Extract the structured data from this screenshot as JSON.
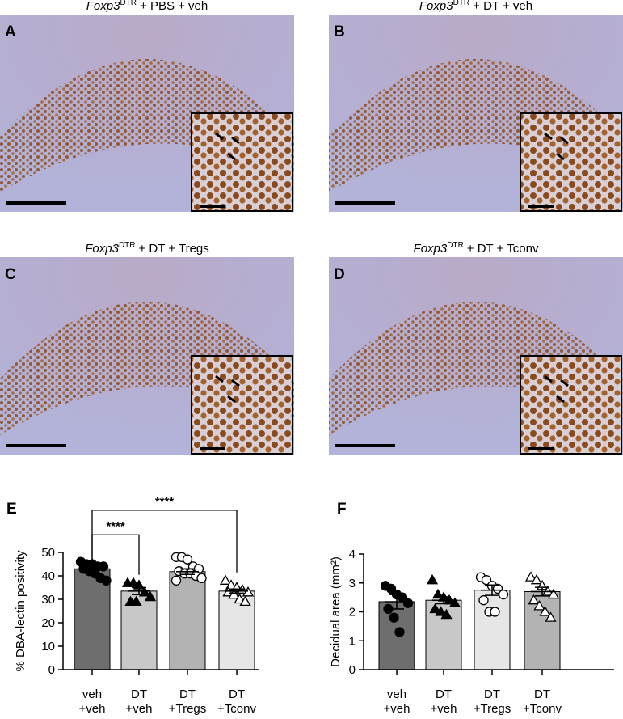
{
  "micrographs": [
    {
      "panel": "A",
      "gene": "Foxp3",
      "superscript": "DTR",
      "condition": "+ PBS + veh"
    },
    {
      "panel": "B",
      "gene": "Foxp3",
      "superscript": "DTR",
      "condition": "+ DT + veh"
    },
    {
      "panel": "C",
      "gene": "Foxp3",
      "superscript": "DTR",
      "condition": "+ DT + Tregs"
    },
    {
      "panel": "D",
      "gene": "Foxp3",
      "superscript": "DTR",
      "condition": "+ DT + Tconv"
    }
  ],
  "chart_data": [
    {
      "panel": "E",
      "type": "bar",
      "ylabel": "% DBA-lectin positivity",
      "categories": [
        [
          "veh",
          "+veh"
        ],
        [
          "DT",
          "+veh"
        ],
        [
          "DT",
          "+Tregs"
        ],
        [
          "DT",
          "+Tconv"
        ]
      ],
      "values": [
        43,
        33.5,
        41.8,
        33.5
      ],
      "errors": [
        1.2,
        1.5,
        1.2,
        0.9
      ],
      "colors": [
        "#6e6e6e",
        "#c8c8c8",
        "#b3b3b3",
        "#e6e6e6"
      ],
      "markers": [
        "circle",
        "triangle",
        "circle",
        "triangle"
      ],
      "marker_fill": [
        "#000000",
        "#000000",
        "#ffffff",
        "#ffffff"
      ],
      "points": [
        [
          46,
          45,
          45,
          44,
          44,
          43,
          42,
          41,
          39,
          38
        ],
        [
          37,
          37,
          36,
          33,
          31,
          29,
          29
        ],
        [
          48,
          48,
          47,
          44,
          43,
          42,
          41,
          41,
          40,
          39,
          38
        ],
        [
          38,
          36,
          35,
          34,
          33,
          33,
          32,
          30,
          29
        ]
      ],
      "ylim": [
        0,
        50
      ],
      "yticks": [
        0,
        10,
        20,
        30,
        40,
        50
      ],
      "annotations": [
        {
          "text": "****",
          "from": 0,
          "to": 1,
          "y": 57.5
        },
        {
          "text": "****",
          "from": 0,
          "to": 3,
          "y": 68
        }
      ]
    },
    {
      "panel": "F",
      "type": "bar",
      "ylabel": "Decidual area (mm²)",
      "categories": [
        [
          "veh",
          "+veh"
        ],
        [
          "DT",
          "+veh"
        ],
        [
          "DT",
          "+Tregs"
        ],
        [
          "DT",
          "+Tconv"
        ]
      ],
      "values": [
        2.35,
        2.4,
        2.75,
        2.7
      ],
      "errors": [
        0.25,
        0.12,
        0.18,
        0.15
      ],
      "colors": [
        "#6e6e6e",
        "#c8c8c8",
        "#e6e6e6",
        "#b3b3b3"
      ],
      "markers": [
        "circle",
        "triangle",
        "circle",
        "triangle"
      ],
      "marker_fill": [
        "#000000",
        "#000000",
        "#ffffff",
        "#ffffff"
      ],
      "points": [
        [
          2.9,
          2.8,
          2.6,
          2.5,
          2.3,
          2.1,
          1.8,
          1.3
        ],
        [
          3.1,
          2.6,
          2.5,
          2.4,
          2.3,
          2.1,
          2.0,
          1.9
        ],
        [
          3.2,
          3.1,
          2.9,
          2.8,
          2.6,
          2.4,
          2.0,
          2.0
        ],
        [
          3.2,
          3.1,
          2.9,
          2.7,
          2.6,
          2.4,
          2.2,
          2.0,
          1.8
        ]
      ],
      "ylim": [
        0,
        4
      ],
      "yticks": [
        0,
        1,
        2,
        3,
        4
      ]
    }
  ]
}
